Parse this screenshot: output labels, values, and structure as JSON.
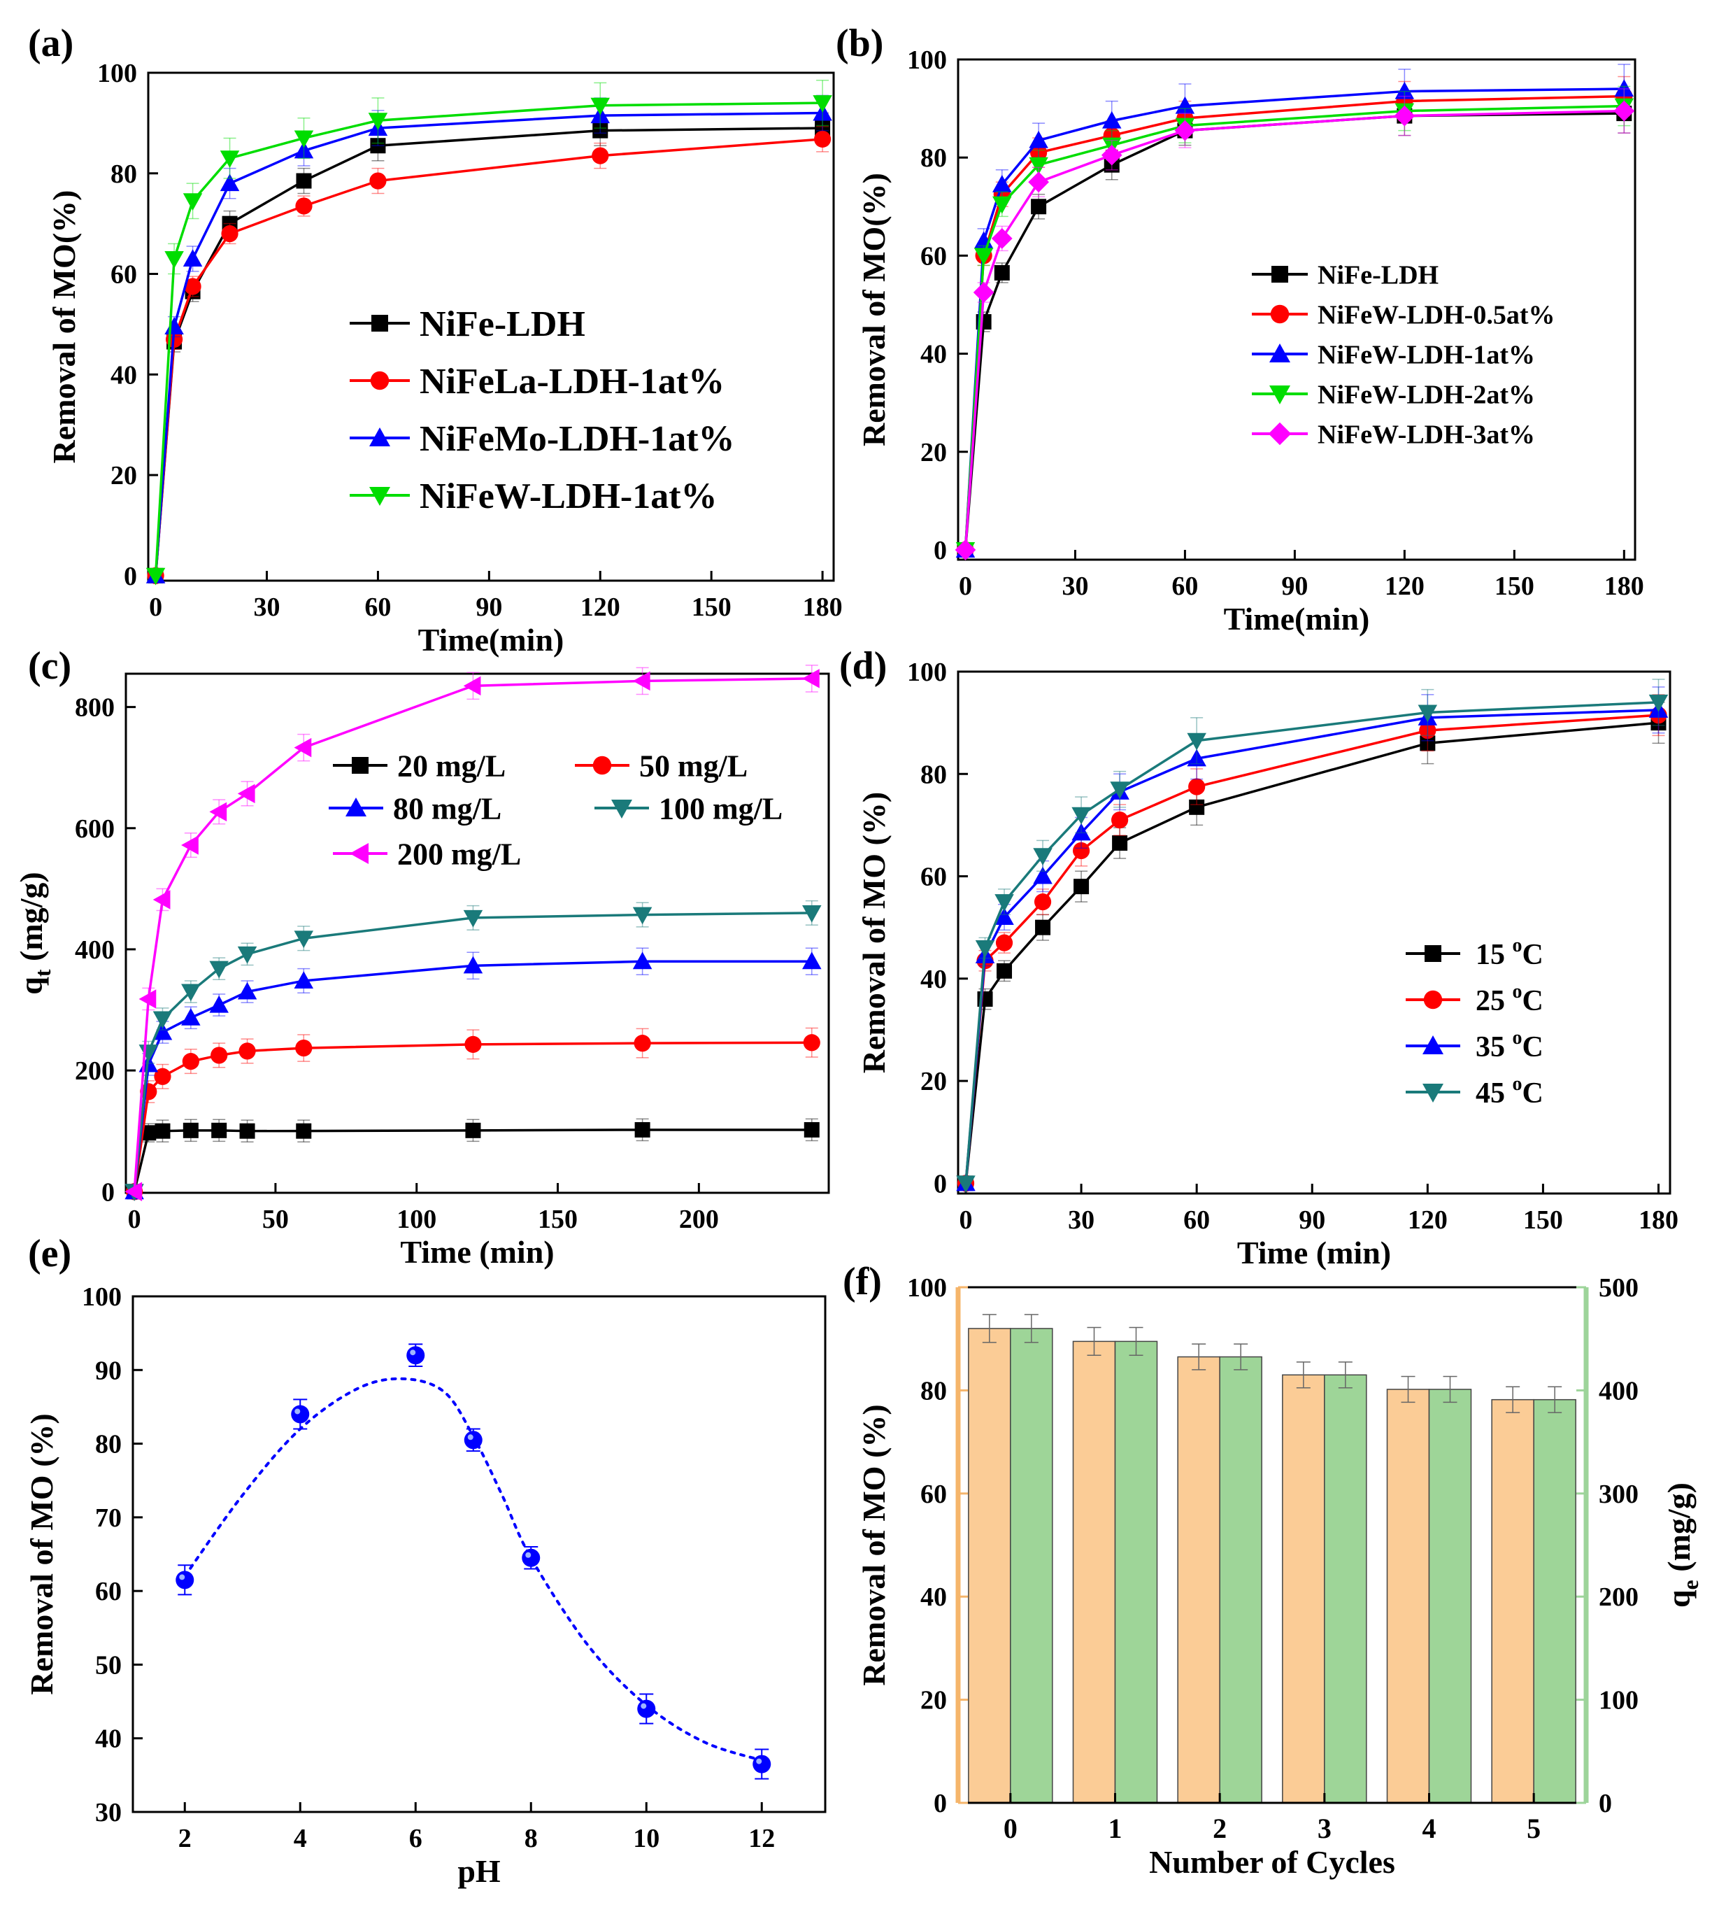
{
  "chart_data": [
    {
      "id": "a",
      "panel_label": "(a)",
      "type": "line",
      "xlabel": "Time(min)",
      "ylabel": "Removal of MO(%)",
      "xlim": [
        -2,
        183
      ],
      "ylim": [
        -1,
        100
      ],
      "xticks": [
        0,
        30,
        60,
        90,
        120,
        150,
        180
      ],
      "yticks": [
        0,
        20,
        40,
        60,
        80,
        100
      ],
      "legend_position": "center-right",
      "series": [
        {
          "name": "NiFe-LDH",
          "color": "#000000",
          "marker": "square",
          "x": [
            0,
            5,
            10,
            20,
            40,
            60,
            120,
            180
          ],
          "y": [
            0,
            46.5,
            56.5,
            70,
            78.5,
            85.5,
            88.5,
            89
          ],
          "err": [
            0,
            2,
            2,
            2.5,
            2.5,
            3,
            3,
            3
          ]
        },
        {
          "name": "NiFeLa-LDH-1at%",
          "color": "#ff0000",
          "marker": "circle",
          "x": [
            0,
            5,
            10,
            20,
            40,
            60,
            120,
            180
          ],
          "y": [
            0,
            47,
            57.5,
            68,
            73.5,
            78.5,
            83.5,
            86.8
          ],
          "err": [
            0,
            2,
            2,
            2,
            2,
            2.5,
            2.5,
            2.5
          ]
        },
        {
          "name": "NiFeMo-LDH-1at%",
          "color": "#0000ff",
          "marker": "triangle-up",
          "x": [
            0,
            5,
            10,
            20,
            40,
            60,
            120,
            180
          ],
          "y": [
            0,
            49.5,
            63,
            78,
            84.5,
            89,
            91.5,
            92
          ],
          "err": [
            0,
            2,
            2.5,
            3,
            3,
            3.5,
            3.5,
            3.5
          ]
        },
        {
          "name": "NiFeW-LDH-1at%",
          "color": "#00dd00",
          "marker": "triangle-down",
          "x": [
            0,
            5,
            10,
            20,
            40,
            60,
            120,
            180
          ],
          "y": [
            0,
            63,
            74.5,
            83,
            87,
            90.5,
            93.5,
            94
          ],
          "err": [
            0,
            3,
            3.5,
            4,
            4,
            4.5,
            4.5,
            4.5
          ]
        }
      ]
    },
    {
      "id": "b",
      "panel_label": "(b)",
      "type": "line",
      "xlabel": "Time(min)",
      "ylabel": "Removal of MO(%)",
      "xlim": [
        -2,
        183
      ],
      "ylim": [
        -2,
        100
      ],
      "xticks": [
        0,
        30,
        60,
        90,
        120,
        150,
        180
      ],
      "yticks": [
        0,
        20,
        40,
        60,
        80,
        100
      ],
      "legend_position": "center-right",
      "series": [
        {
          "name": "NiFe-LDH",
          "color": "#000000",
          "marker": "square",
          "x": [
            0,
            5,
            10,
            20,
            40,
            60,
            120,
            180
          ],
          "y": [
            0,
            46.5,
            56.5,
            70,
            78.5,
            85.5,
            88.5,
            89
          ],
          "err": [
            0,
            2,
            2,
            2.5,
            3,
            3,
            4,
            4
          ]
        },
        {
          "name": "NiFeW-LDH-0.5at%",
          "color": "#ff0000",
          "marker": "circle",
          "x": [
            0,
            5,
            10,
            20,
            40,
            60,
            120,
            180
          ],
          "y": [
            0,
            60,
            72.5,
            81,
            84.5,
            88,
            91.5,
            92.5
          ],
          "err": [
            0,
            2,
            2.5,
            3,
            3,
            3.5,
            4,
            4
          ]
        },
        {
          "name": "NiFeW-LDH-1at%",
          "color": "#0000ff",
          "marker": "triangle-up",
          "x": [
            0,
            5,
            10,
            20,
            40,
            60,
            120,
            180
          ],
          "y": [
            0,
            63,
            74.5,
            83.5,
            87.5,
            90.5,
            93.5,
            94
          ],
          "err": [
            0,
            2.5,
            3,
            3.5,
            4,
            4.5,
            4.5,
            5
          ]
        },
        {
          "name": "NiFeW-LDH-2at%",
          "color": "#00dd00",
          "marker": "triangle-down",
          "x": [
            0,
            5,
            10,
            20,
            40,
            60,
            120,
            180
          ],
          "y": [
            0,
            60,
            70.5,
            78.5,
            82.5,
            86.5,
            89.5,
            90.5
          ],
          "err": [
            0,
            2,
            2.5,
            3,
            3,
            3.5,
            4,
            4
          ]
        },
        {
          "name": "NiFeW-LDH-3at%",
          "color": "#ff00ff",
          "marker": "diamond",
          "x": [
            0,
            5,
            10,
            20,
            40,
            60,
            120,
            180
          ],
          "y": [
            0,
            52.5,
            63.5,
            75,
            80.5,
            85.5,
            88.5,
            89.5
          ],
          "err": [
            0,
            2,
            2.5,
            3,
            3,
            3.5,
            4,
            4.5
          ]
        }
      ]
    },
    {
      "id": "c",
      "panel_label": "(c)",
      "type": "line",
      "xlabel": "Time (min)",
      "ylabel_main": "q",
      "ylabel_sub": "t",
      "ylabel_unit": " (mg/g)",
      "xlim": [
        -3,
        246
      ],
      "ylim": [
        -2,
        855
      ],
      "xticks": [
        0,
        50,
        100,
        150,
        200
      ],
      "yticks": [
        0,
        200,
        400,
        600,
        800
      ],
      "legend_position": "top-center",
      "series": [
        {
          "name": "20 mg/L",
          "color": "#000000",
          "marker": "square",
          "x": [
            0,
            5,
            10,
            20,
            30,
            40,
            60,
            120,
            180,
            240
          ],
          "y": [
            0,
            97,
            100,
            101,
            101,
            100,
            100,
            101,
            102,
            102
          ],
          "err": [
            0,
            15,
            18,
            18,
            18,
            18,
            18,
            18,
            18,
            18
          ]
        },
        {
          "name": "50 mg/L",
          "color": "#ff0000",
          "marker": "circle",
          "x": [
            0,
            5,
            10,
            20,
            30,
            40,
            60,
            120,
            180,
            240
          ],
          "y": [
            0,
            165,
            190,
            215,
            225,
            232,
            237,
            243,
            245,
            246
          ],
          "err": [
            0,
            18,
            20,
            20,
            20,
            20,
            22,
            24,
            24,
            24
          ]
        },
        {
          "name": "80 mg/L",
          "color": "#0000ff",
          "marker": "triangle-up",
          "x": [
            0,
            5,
            10,
            20,
            30,
            40,
            60,
            120,
            180,
            240
          ],
          "y": [
            0,
            210,
            263,
            287,
            308,
            330,
            348,
            373,
            380,
            380
          ],
          "err": [
            0,
            18,
            18,
            18,
            18,
            18,
            20,
            22,
            22,
            22
          ]
        },
        {
          "name": "100 mg/L",
          "color": "#1a7a7a",
          "marker": "triangle-down",
          "x": [
            0,
            5,
            10,
            20,
            30,
            40,
            60,
            120,
            180,
            240
          ],
          "y": [
            0,
            230,
            285,
            330,
            368,
            392,
            418,
            452,
            457,
            460
          ],
          "err": [
            0,
            18,
            18,
            18,
            18,
            18,
            20,
            20,
            20,
            20
          ]
        },
        {
          "name": "200 mg/L",
          "color": "#ff00ff",
          "marker": "triangle-left",
          "x": [
            0,
            5,
            10,
            20,
            30,
            40,
            60,
            120,
            180,
            240
          ],
          "y": [
            0,
            318,
            482,
            572,
            627,
            657,
            733,
            835,
            843,
            847
          ],
          "err": [
            0,
            18,
            18,
            20,
            20,
            20,
            22,
            22,
            22,
            22
          ]
        }
      ]
    },
    {
      "id": "d",
      "panel_label": "(d)",
      "type": "line",
      "xlabel": "Time (min)",
      "ylabel": "Removal of MO (%)",
      "xlim": [
        -2,
        183
      ],
      "ylim": [
        -2,
        100
      ],
      "xticks": [
        0,
        30,
        60,
        90,
        120,
        150,
        180
      ],
      "yticks": [
        0,
        20,
        40,
        60,
        80,
        100
      ],
      "legend_position": "center-right",
      "series": [
        {
          "name": "15",
          "unit": "C",
          "sup": "o",
          "color": "#000000",
          "marker": "square",
          "x": [
            0,
            5,
            10,
            20,
            30,
            40,
            60,
            120,
            180
          ],
          "y": [
            0,
            36,
            41.5,
            50,
            58,
            66.5,
            73.5,
            86,
            90
          ],
          "err": [
            0,
            2,
            2,
            2.5,
            3,
            3,
            3.5,
            4,
            4
          ]
        },
        {
          "name": "25",
          "unit": "C",
          "sup": "o",
          "color": "#ff0000",
          "marker": "circle",
          "x": [
            0,
            5,
            10,
            20,
            30,
            40,
            60,
            120,
            180
          ],
          "y": [
            0,
            43.5,
            47,
            55,
            65,
            71,
            77.5,
            88.5,
            91.5
          ],
          "err": [
            0,
            2,
            2,
            2.5,
            3,
            3,
            3.5,
            4,
            4
          ]
        },
        {
          "name": "35",
          "unit": "C",
          "sup": "o",
          "color": "#0000ff",
          "marker": "triangle-up",
          "x": [
            0,
            5,
            10,
            20,
            30,
            40,
            60,
            120,
            180
          ],
          "y": [
            0,
            44.5,
            52,
            60,
            68.5,
            76.5,
            83,
            91,
            92.5
          ],
          "err": [
            0,
            2,
            2.5,
            3,
            3,
            3.5,
            4,
            4.5,
            4.5
          ]
        },
        {
          "name": "45",
          "unit": "C",
          "sup": "o",
          "color": "#1a7a7a",
          "marker": "triangle-down",
          "x": [
            0,
            5,
            10,
            20,
            30,
            40,
            60,
            120,
            180
          ],
          "y": [
            0,
            46,
            55,
            64,
            72,
            77,
            86.5,
            92,
            94
          ],
          "err": [
            0,
            2,
            2.5,
            3,
            3.5,
            3.5,
            4.5,
            4.5,
            4.5
          ]
        }
      ]
    },
    {
      "id": "e",
      "panel_label": "(e)",
      "type": "scatter",
      "xlabel": "pH",
      "ylabel": "Removal of MO (%)",
      "xlim": [
        1.1,
        13.1
      ],
      "ylim": [
        30,
        100
      ],
      "xticks": [
        2,
        4,
        6,
        8,
        10,
        12
      ],
      "yticks": [
        30,
        40,
        50,
        60,
        70,
        80,
        90,
        100
      ],
      "marker_color": "#0000ff",
      "fit_color": "#0000ff",
      "points": {
        "x": [
          2,
          4,
          6,
          7,
          8,
          10,
          12
        ],
        "y": [
          61.5,
          84,
          92,
          80.5,
          64.5,
          44,
          36.5
        ],
        "err": [
          2,
          2,
          1.5,
          1.5,
          1.5,
          2,
          2
        ]
      },
      "fit_curve": {
        "x": [
          2,
          3,
          4,
          5,
          5.8,
          6.5,
          7,
          7.5,
          8,
          9,
          10,
          11,
          12
        ],
        "y": [
          62,
          73,
          82,
          87.5,
          88.8,
          87,
          81,
          73,
          64.5,
          52.5,
          44.5,
          39.5,
          37
        ]
      }
    },
    {
      "id": "f",
      "panel_label": "(f)",
      "type": "bar",
      "xlabel": "Number of Cycles",
      "ylabel_left": "Removal of MO (%)",
      "ylabel_right_main": "q",
      "ylabel_right_sub": "e",
      "ylabel_right_unit": " (mg/g)",
      "categories": [
        "0",
        "1",
        "2",
        "3",
        "4",
        "5"
      ],
      "xlim": [
        -0.5,
        5.5
      ],
      "ylim_left": [
        0,
        100
      ],
      "ylim_right": [
        0,
        500
      ],
      "yticks_left": [
        0,
        20,
        40,
        60,
        80,
        100
      ],
      "yticks_right": [
        0,
        100,
        200,
        300,
        400,
        500
      ],
      "left_axis_color": "#f5b56b",
      "right_axis_color": "#9dd49a",
      "series": [
        {
          "name": "Removal of MO (%)",
          "axis": "left",
          "color": "#fbcc96",
          "values": [
            92,
            89.5,
            86.5,
            83,
            80.2,
            78.2
          ],
          "err": [
            2.7,
            2.7,
            2.5,
            2.5,
            2.5,
            2.5
          ]
        },
        {
          "name": "q_e (mg/g)",
          "axis": "right",
          "color": "#9ed598",
          "values": [
            460,
            447.5,
            432.5,
            415,
            401,
            391
          ],
          "err": [
            13.5,
            13.5,
            12.5,
            12.5,
            12.5,
            12.5
          ]
        }
      ]
    }
  ]
}
